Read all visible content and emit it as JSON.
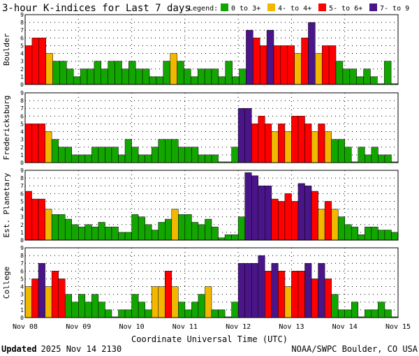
{
  "title": "3-hour K-indices for Last 7 days",
  "legend": {
    "label": "Legend:",
    "items": [
      {
        "label": "0 to 3+",
        "color": "#13a600"
      },
      {
        "label": "4- to 4+",
        "color": "#f2b800"
      },
      {
        "label": "5- to 6+",
        "color": "#ff0000"
      },
      {
        "label": "7- to 9",
        "color": "#4a1589"
      }
    ]
  },
  "footer": {
    "updated_label": "Updated",
    "updated_value": "2025 Nov 14 2130",
    "credit": "NOAA/SWPC Boulder, CO USA"
  },
  "chart_data": {
    "type": "bar",
    "xlabel": "Coordinate Universal Time (UTC)",
    "x_ticks": [
      "Nov 08",
      "Nov 09",
      "Nov 10",
      "Nov 11",
      "Nov 12",
      "Nov 13",
      "Nov 14",
      "Nov 15"
    ],
    "y_ticks": [
      "0",
      "1",
      "2",
      "3",
      "4",
      "5",
      "6",
      "7",
      "8",
      "9"
    ],
    "ylim": [
      0,
      9
    ],
    "grid": "dotted",
    "series": [
      {
        "name": "Boulder",
        "values": [
          5,
          6,
          6,
          4,
          3,
          3,
          2,
          1,
          2,
          2,
          3,
          2,
          3,
          3,
          2,
          3,
          2,
          2,
          1,
          1,
          3,
          4,
          3,
          2,
          1,
          2,
          2,
          2,
          1,
          3,
          1,
          2,
          7,
          6,
          5,
          7,
          5,
          5,
          5,
          4,
          6,
          8,
          4,
          5,
          5,
          3,
          2,
          2,
          1,
          2,
          1,
          0.1,
          3,
          0.1
        ]
      },
      {
        "name": "Fredericksburg",
        "values": [
          5,
          5,
          5,
          4,
          3,
          2,
          2,
          1,
          1,
          1,
          2,
          2,
          2,
          2,
          1,
          3,
          2,
          1,
          1,
          2,
          3,
          3,
          3,
          2,
          2,
          2,
          1,
          1,
          1,
          0.1,
          0.1,
          2,
          7,
          7,
          5,
          6,
          5,
          4,
          5,
          4,
          6,
          6,
          5,
          4,
          5,
          4,
          3,
          3,
          2,
          0.1,
          2,
          1,
          2,
          1,
          1,
          0.1
        ]
      },
      {
        "name": "Est. Planetary",
        "values": [
          6.3,
          5.3,
          5.3,
          4,
          3.3,
          3.3,
          2.7,
          2,
          1.7,
          2,
          1.7,
          2.3,
          1.7,
          1.7,
          1,
          1,
          3.3,
          3,
          2,
          1.3,
          2.3,
          2.7,
          4,
          3.3,
          3.3,
          2.3,
          2,
          2.7,
          1.7,
          0.3,
          0.7,
          0.7,
          3,
          8.7,
          8.3,
          7,
          7,
          5.3,
          5,
          6,
          5,
          7.3,
          7,
          6.3,
          4,
          5,
          4,
          3,
          2,
          1.7,
          0.7,
          1.7,
          1.7,
          1.3,
          1.3,
          1
        ]
      },
      {
        "name": "College",
        "values": [
          4,
          5,
          7,
          4,
          6,
          5,
          3,
          2,
          3,
          2,
          3,
          2,
          1,
          0.1,
          1,
          1,
          3,
          2,
          1,
          4,
          4,
          6,
          4,
          2,
          1,
          2,
          3,
          4,
          1,
          1,
          0.1,
          2,
          7,
          7,
          7,
          8,
          6,
          7,
          6,
          4,
          6,
          6,
          7,
          5,
          7,
          5,
          3,
          1,
          1,
          2,
          0.1,
          1,
          1,
          2,
          1,
          0.1
        ]
      }
    ]
  }
}
